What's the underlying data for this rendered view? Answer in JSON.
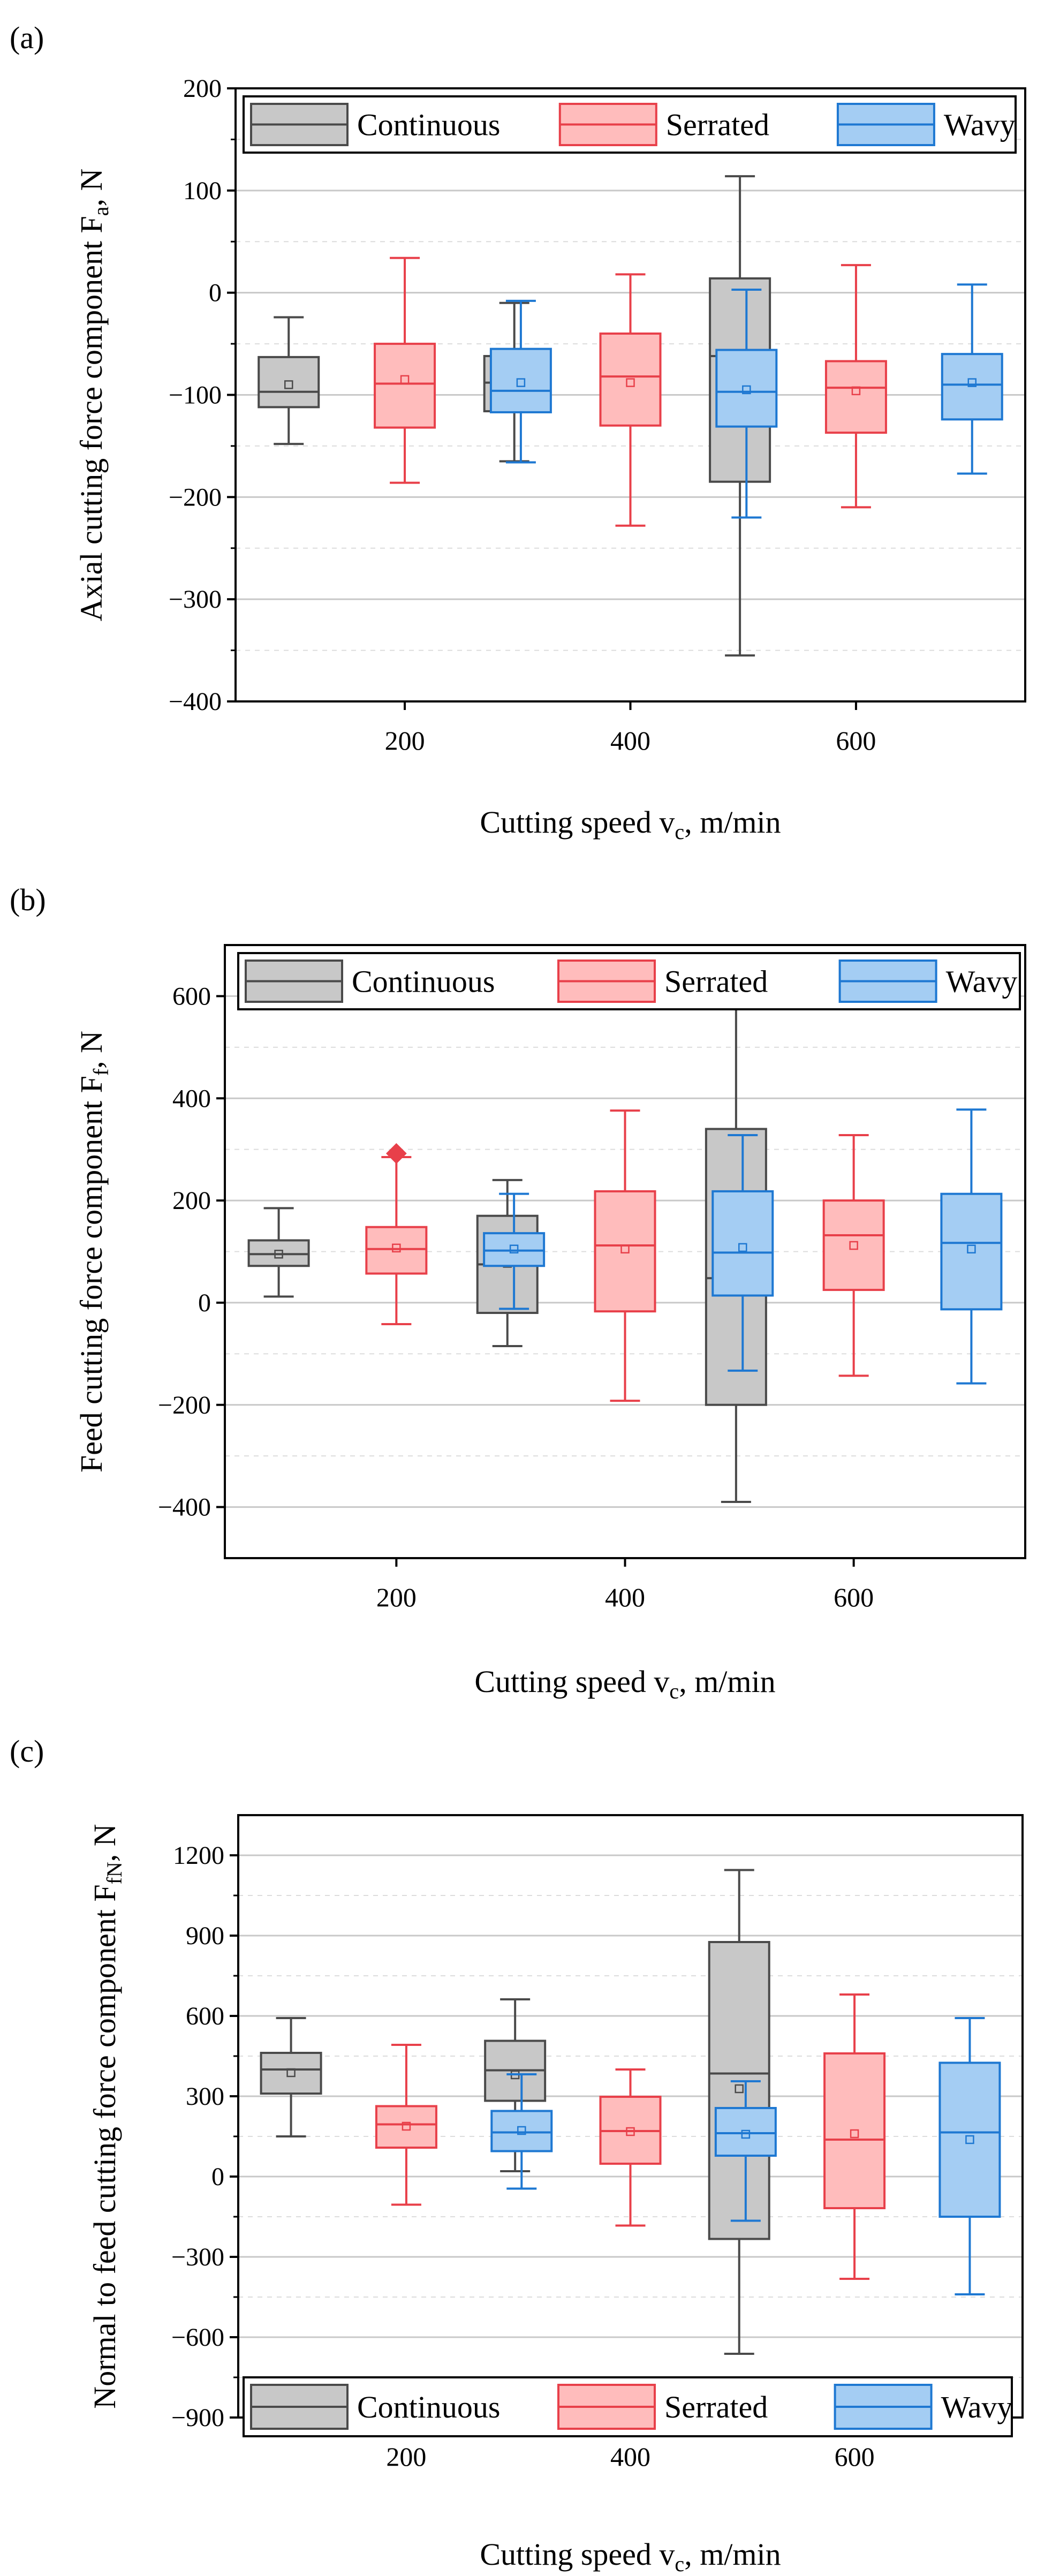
{
  "chart_data": [
    {
      "panel_label": "(a)",
      "type": "box",
      "title": "",
      "xlabel": "Cutting speed v",
      "xlabel_sub": "c",
      "xlabel_tail": ", m/min",
      "ylabel": "Axial cutting force component F",
      "ylabel_sub": "a",
      "ylabel_tail": ", N",
      "ylim": [
        -400,
        200
      ],
      "yticks": [
        -400,
        -300,
        -200,
        -100,
        0,
        100,
        200
      ],
      "categories": [
        "200",
        "400",
        "600"
      ],
      "legend": {
        "position": "top",
        "entries": [
          "Continuous",
          "Serrated",
          "Wavy"
        ]
      },
      "series": [
        {
          "name": "Continuous",
          "boxes": [
            {
              "min": -148,
              "q1": -112,
              "median": -97,
              "q3": -63,
              "max": -24,
              "mean": -90
            },
            {
              "min": -165,
              "q1": -116,
              "median": -88,
              "q3": -62,
              "max": -10,
              "mean": -88
            },
            {
              "min": -355,
              "q1": -185,
              "median": -62,
              "q3": 14,
              "max": 114,
              "mean": -88
            }
          ]
        },
        {
          "name": "Serrated",
          "boxes": [
            {
              "min": -186,
              "q1": -132,
              "median": -89,
              "q3": -50,
              "max": 34,
              "mean": -85
            },
            {
              "min": -228,
              "q1": -130,
              "median": -82,
              "q3": -40,
              "max": 18,
              "mean": -88
            },
            {
              "min": -210,
              "q1": -137,
              "median": -93,
              "q3": -67,
              "max": 27,
              "mean": -96
            }
          ]
        },
        {
          "name": "Wavy",
          "boxes": [
            {
              "min": -166,
              "q1": -117,
              "median": -96,
              "q3": -55,
              "max": -8,
              "mean": -88
            },
            {
              "min": -220,
              "q1": -131,
              "median": -97,
              "q3": -56,
              "max": 3,
              "mean": -95
            },
            {
              "min": -177,
              "q1": -124,
              "median": -90,
              "q3": -60,
              "max": 8,
              "mean": -88
            }
          ]
        }
      ]
    },
    {
      "panel_label": "(b)",
      "type": "box",
      "title": "",
      "xlabel": "Cutting speed v",
      "xlabel_sub": "c",
      "xlabel_tail": ", m/min",
      "ylabel": "Feed cutting force component F",
      "ylabel_sub": "f",
      "ylabel_tail": ", N",
      "ylim": [
        -500,
        700
      ],
      "yticks": [
        -400,
        -200,
        0,
        200,
        400,
        600
      ],
      "categories": [
        "200",
        "400",
        "600"
      ],
      "legend": {
        "position": "top",
        "entries": [
          "Continuous",
          "Serrated",
          "Wavy"
        ]
      },
      "series": [
        {
          "name": "Continuous",
          "boxes": [
            {
              "min": 12,
              "q1": 72,
              "median": 95,
              "q3": 122,
              "max": 185,
              "mean": 95
            },
            {
              "min": -85,
              "q1": -20,
              "median": 75,
              "q3": 170,
              "max": 240,
              "mean": 77
            },
            {
              "min": -390,
              "q1": -200,
              "median": 48,
              "q3": 340,
              "max": 575,
              "mean": 70
            }
          ]
        },
        {
          "name": "Serrated",
          "boxes": [
            {
              "min": -42,
              "q1": 57,
              "median": 105,
              "q3": 148,
              "max": 285,
              "mean": 107,
              "outliers": [
                292
              ]
            },
            {
              "min": -192,
              "q1": -17,
              "median": 112,
              "q3": 218,
              "max": 376,
              "mean": 105
            },
            {
              "min": -143,
              "q1": 25,
              "median": 132,
              "q3": 200,
              "max": 328,
              "mean": 112
            }
          ]
        },
        {
          "name": "Wavy",
          "boxes": [
            {
              "min": -12,
              "q1": 72,
              "median": 102,
              "q3": 136,
              "max": 213,
              "mean": 105
            },
            {
              "min": -133,
              "q1": 14,
              "median": 98,
              "q3": 218,
              "max": 328,
              "mean": 108
            },
            {
              "min": -158,
              "q1": -13,
              "median": 117,
              "q3": 213,
              "max": 378,
              "mean": 105
            }
          ]
        }
      ]
    },
    {
      "panel_label": "(c)",
      "type": "box",
      "title": "",
      "xlabel": "Cutting speed v",
      "xlabel_sub": "c",
      "xlabel_tail": ", m/min",
      "ylabel": "Normal to feed cutting force component F",
      "ylabel_sub": "fN",
      "ylabel_tail": ", N",
      "ylim": [
        -900,
        1350
      ],
      "yticks": [
        -900,
        -600,
        -300,
        0,
        300,
        600,
        900,
        1200
      ],
      "categories": [
        "200",
        "400",
        "600"
      ],
      "legend": {
        "position": "bottom",
        "entries": [
          "Continuous",
          "Serrated",
          "Wavy"
        ]
      },
      "series": [
        {
          "name": "Continuous",
          "boxes": [
            {
              "min": 150,
              "q1": 310,
              "median": 400,
              "q3": 462,
              "max": 592,
              "mean": 388
            },
            {
              "min": 20,
              "q1": 283,
              "median": 397,
              "q3": 507,
              "max": 662,
              "mean": 380
            },
            {
              "min": -662,
              "q1": -233,
              "median": 385,
              "q3": 876,
              "max": 1145,
              "mean": 328
            }
          ]
        },
        {
          "name": "Serrated",
          "boxes": [
            {
              "min": -105,
              "q1": 108,
              "median": 195,
              "q3": 263,
              "max": 492,
              "mean": 188
            },
            {
              "min": -183,
              "q1": 48,
              "median": 170,
              "q3": 298,
              "max": 400,
              "mean": 168
            },
            {
              "min": -382,
              "q1": -118,
              "median": 138,
              "q3": 460,
              "max": 680,
              "mean": 160
            }
          ]
        },
        {
          "name": "Wavy",
          "boxes": [
            {
              "min": -45,
              "q1": 95,
              "median": 165,
              "q3": 245,
              "max": 382,
              "mean": 172
            },
            {
              "min": -165,
              "q1": 78,
              "median": 162,
              "q3": 256,
              "max": 356,
              "mean": 158
            },
            {
              "min": -440,
              "q1": -150,
              "median": 165,
              "q3": 425,
              "max": 592,
              "mean": 138
            }
          ]
        }
      ]
    }
  ],
  "series_colors": {
    "Continuous": {
      "fill": "#c8c8c8",
      "stroke": "#4a4a4a"
    },
    "Serrated": {
      "fill": "#ffbcbc",
      "stroke": "#e8404a"
    },
    "Wavy": {
      "fill": "#a4cdf3",
      "stroke": "#1e78d2"
    }
  },
  "mean_symbol": "square",
  "outlier_symbol": "diamond"
}
